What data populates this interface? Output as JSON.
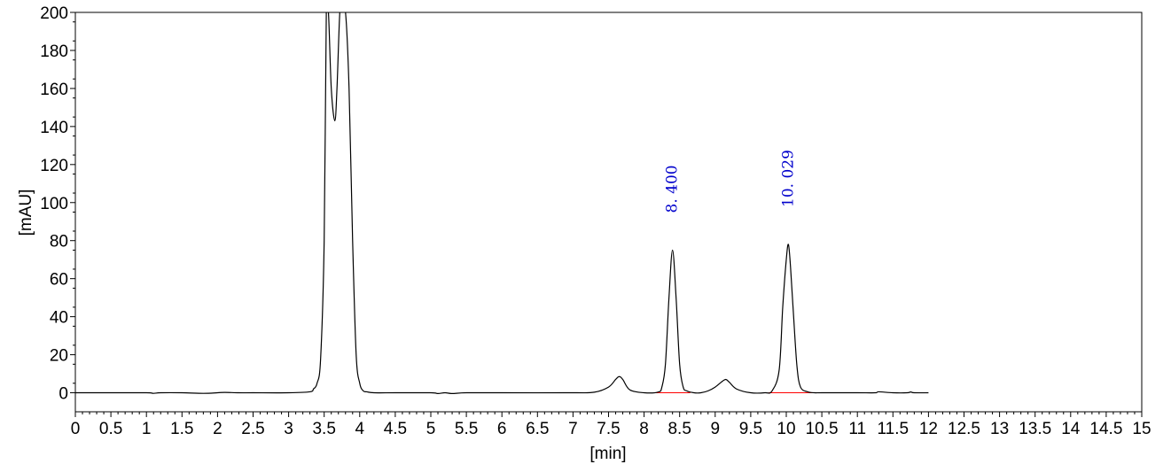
{
  "chart_data": {
    "type": "line",
    "xlabel": "[min]",
    "ylabel": "[mAU]",
    "xlim": [
      0,
      15
    ],
    "ylim": [
      -10,
      200
    ],
    "x_ticks": [
      "0",
      "0.5",
      "1",
      "1.5",
      "2",
      "2.5",
      "3",
      "3.5",
      "4",
      "4.5",
      "5",
      "5.5",
      "6",
      "6.5",
      "7",
      "7.5",
      "8",
      "8.5",
      "9",
      "9.5",
      "10",
      "10.5",
      "11",
      "11.5",
      "12",
      "12.5",
      "13",
      "13.5",
      "14",
      "14.5",
      "15"
    ],
    "y_ticks": [
      "0",
      "20",
      "40",
      "60",
      "80",
      "100",
      "120",
      "140",
      "160",
      "180",
      "200"
    ],
    "grid": false,
    "colors": {
      "trace": "#000000",
      "baseline": "#ff0000",
      "peak_label": "#0000cc"
    },
    "series": [
      {
        "x": [
          0,
          0.5,
          1.0,
          1.1,
          1.2,
          1.5,
          1.8,
          2.0,
          2.1,
          2.3,
          2.5,
          3.0,
          3.3,
          3.35,
          3.4,
          3.45,
          3.5,
          3.53,
          3.56,
          3.6,
          3.65,
          3.68,
          3.72,
          3.75,
          3.8,
          3.85,
          3.9,
          3.95,
          4.0,
          4.05,
          4.1,
          4.2,
          4.5,
          5.0,
          5.1,
          5.2,
          5.3,
          5.5,
          6.0,
          7.0,
          7.3,
          7.5,
          7.6,
          7.65,
          7.7,
          7.8,
          8.0,
          8.2,
          8.25,
          8.3,
          8.35,
          8.4,
          8.45,
          8.5,
          8.55,
          8.6,
          8.7,
          8.8,
          8.9,
          9.0,
          9.1,
          9.15,
          9.2,
          9.3,
          9.5,
          9.7,
          9.8,
          9.9,
          9.95,
          10.0,
          10.03,
          10.06,
          10.1,
          10.15,
          10.2,
          10.3,
          10.4,
          10.5,
          11.0,
          11.25,
          11.3,
          11.5,
          11.7,
          11.75,
          11.8,
          12.0
        ],
        "y": [
          0,
          0,
          0,
          -0.3,
          0,
          0,
          -0.3,
          0,
          0.2,
          0,
          0,
          0,
          0.5,
          2,
          5,
          18,
          80,
          200,
          200,
          160,
          143,
          160,
          200,
          200,
          200,
          160,
          80,
          20,
          5,
          1,
          0.5,
          0,
          0,
          0,
          -0.4,
          0,
          -0.4,
          0,
          0,
          0,
          0.3,
          3,
          7,
          8.5,
          7,
          1.5,
          0,
          0.4,
          3,
          15,
          50,
          75,
          50,
          15,
          3,
          1,
          0,
          0,
          1,
          3,
          6,
          7,
          5.5,
          2,
          0,
          0,
          1,
          12,
          45,
          70,
          78,
          66,
          42,
          14,
          3,
          0.5,
          0,
          0,
          0,
          0,
          0.5,
          0,
          0,
          0.4,
          0,
          0
        ]
      }
    ],
    "annotations": [
      {
        "x": 8.4,
        "y": 75,
        "text": "8. 400"
      },
      {
        "x": 10.029,
        "y": 78,
        "text": "10. 029"
      }
    ],
    "integration_baselines": [
      {
        "x": [
          8.15,
          8.65
        ]
      },
      {
        "x": [
          9.75,
          10.4
        ]
      }
    ]
  }
}
